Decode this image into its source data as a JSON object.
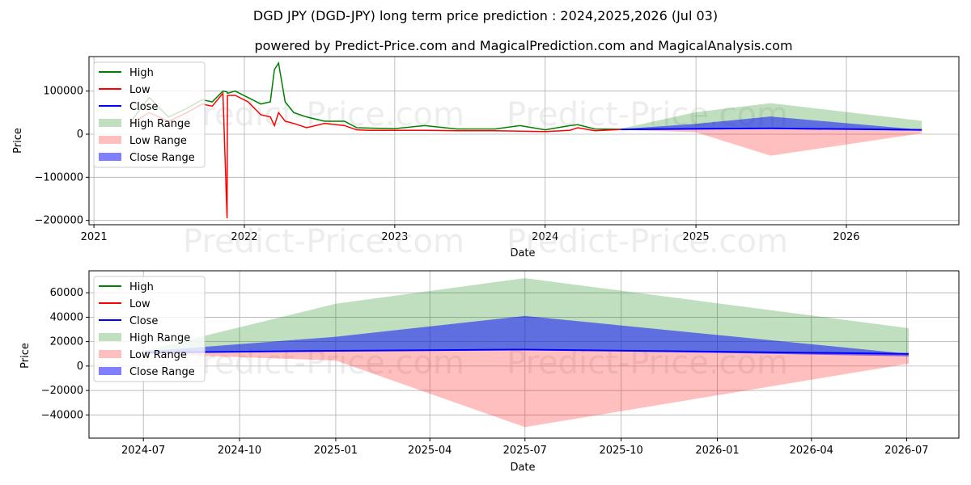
{
  "chart_data": [
    {
      "type": "line",
      "title": "DGD JPY (DGD-JPY) long term price prediction : 2024,2025,2026 (Jul 03)",
      "subtitle": "powered by Predict-Price.com and MagicalPrediction.com and MagicalAnalysis.com",
      "xlabel": "Date",
      "ylabel": "Price",
      "watermark": "Predict-Price.com",
      "xlim": [
        "2020-12-20",
        "2026-10-01"
      ],
      "ylim": [
        -210000,
        180000
      ],
      "yticks": [
        100000,
        0,
        -100000,
        -200000
      ],
      "ytick_labels": [
        "100000",
        "0",
        "−100000",
        "−200000"
      ],
      "xticks": [
        "2021-01-01",
        "2022-01-01",
        "2023-01-01",
        "2024-01-01",
        "2025-01-01",
        "2026-01-01"
      ],
      "xtick_labels": [
        "2021",
        "2022",
        "2023",
        "2024",
        "2025",
        "2026"
      ],
      "legend": {
        "placement": "top-left",
        "entries": [
          "High",
          "Low",
          "Close",
          "High Range",
          "Low Range",
          "Close Range"
        ]
      },
      "history": {
        "dates": [
          "2021-04-01",
          "2021-05-15",
          "2021-07-01",
          "2021-08-15",
          "2021-09-20",
          "2021-10-15",
          "2021-11-10",
          "2021-11-20",
          "2021-11-21",
          "2021-12-10",
          "2022-01-10",
          "2022-02-10",
          "2022-03-05",
          "2022-03-15",
          "2022-03-25",
          "2022-04-10",
          "2022-05-01",
          "2022-06-01",
          "2022-07-15",
          "2022-09-01",
          "2022-10-01",
          "2022-11-01",
          "2023-01-01",
          "2023-03-15",
          "2023-06-01",
          "2023-09-01",
          "2023-11-01",
          "2024-01-01",
          "2024-03-01",
          "2024-03-20",
          "2024-05-01",
          "2024-07-03"
        ],
        "high": [
          30000,
          85000,
          40000,
          60000,
          80000,
          75000,
          100000,
          98000,
          95000,
          100000,
          85000,
          70000,
          75000,
          150000,
          165000,
          75000,
          50000,
          40000,
          30000,
          30000,
          15000,
          14000,
          13000,
          20000,
          12000,
          12000,
          20000,
          10000,
          20000,
          22000,
          12000,
          11500
        ],
        "low": [
          25000,
          50000,
          30000,
          50000,
          70000,
          65000,
          95000,
          -195000,
          90000,
          90000,
          75000,
          45000,
          40000,
          20000,
          50000,
          30000,
          25000,
          15000,
          25000,
          20000,
          10000,
          9000,
          9000,
          9000,
          8000,
          8000,
          7000,
          6000,
          9000,
          15000,
          8000,
          11000
        ]
      },
      "forecast": {
        "dates": [
          "2024-07-03",
          "2025-01-01",
          "2025-07-01",
          "2026-07-03"
        ],
        "close": [
          11000,
          12500,
          13500,
          10000
        ],
        "high_range": [
          [
            11000,
            13000
          ],
          [
            12500,
            51000
          ],
          [
            13500,
            72000
          ],
          [
            10000,
            31000
          ]
        ],
        "low_range": [
          [
            11000,
            10000
          ],
          [
            4500,
            12500
          ],
          [
            -50000,
            13500
          ],
          [
            2000,
            10000
          ]
        ],
        "close_range": [
          [
            11000,
            12000
          ],
          [
            12500,
            24000
          ],
          [
            13500,
            41000
          ],
          [
            8000,
            10000
          ]
        ]
      }
    },
    {
      "type": "area",
      "xlabel": "Date",
      "ylabel": "Price",
      "watermark": "Predict-Price.com",
      "xlim": [
        "2024-05-10",
        "2026-08-20"
      ],
      "ylim": [
        -59000,
        78000
      ],
      "yticks": [
        60000,
        40000,
        20000,
        0,
        -20000,
        -40000
      ],
      "ytick_labels": [
        "60000",
        "40000",
        "20000",
        "0",
        "−20000",
        "−40000"
      ],
      "xticks": [
        "2024-07-01",
        "2024-10-01",
        "2025-01-01",
        "2025-04-01",
        "2025-07-01",
        "2025-10-01",
        "2026-01-01",
        "2026-04-01",
        "2026-07-01"
      ],
      "xtick_labels": [
        "2024-07",
        "2024-10",
        "2025-01",
        "2025-04",
        "2025-07",
        "2025-10",
        "2026-01",
        "2026-04",
        "2026-07"
      ],
      "legend": {
        "placement": "top-left",
        "entries": [
          "High",
          "Low",
          "Close",
          "High Range",
          "Low Range",
          "Close Range"
        ]
      }
    }
  ],
  "colors": {
    "high": "#008000",
    "low": "#ff0000",
    "close": "#0000ff",
    "high_range": "#008000",
    "low_range": "#ff0000",
    "close_range": "#0000ff"
  }
}
